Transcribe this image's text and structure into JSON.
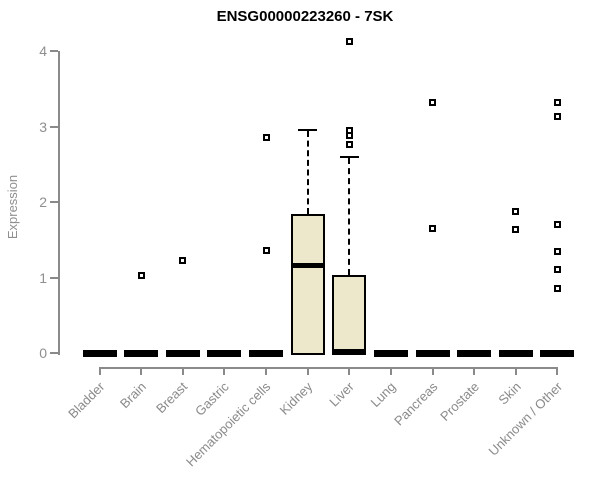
{
  "title": "ENSG00000223260 - 7SK",
  "chart_data": {
    "type": "box",
    "title": "ENSG00000223260 - 7SK",
    "xlabel": "",
    "ylabel": "Expression",
    "ylim": [
      0,
      4
    ],
    "yticks": [
      "0",
      "1",
      "2",
      "3",
      "4"
    ],
    "grid": false,
    "legend": "none",
    "categories": [
      "Bladder",
      "Brain",
      "Breast",
      "Gastric",
      "Hematopoietic cells",
      "Kidney",
      "Liver",
      "Lung",
      "Pancreas",
      "Prostate",
      "Skin",
      "Unknown / Other"
    ],
    "boxes": [
      {
        "category": "Bladder",
        "q1": 0,
        "median": 0,
        "q3": 0,
        "whisker_low": 0,
        "whisker_high": 0,
        "outliers": []
      },
      {
        "category": "Brain",
        "q1": 0,
        "median": 0,
        "q3": 0,
        "whisker_low": 0,
        "whisker_high": 0,
        "outliers": [
          1.02
        ]
      },
      {
        "category": "Breast",
        "q1": 0,
        "median": 0,
        "q3": 0,
        "whisker_low": 0,
        "whisker_high": 0,
        "outliers": [
          1.23
        ]
      },
      {
        "category": "Gastric",
        "q1": 0,
        "median": 0,
        "q3": 0,
        "whisker_low": 0,
        "whisker_high": 0,
        "outliers": []
      },
      {
        "category": "Hematopoietic cells",
        "q1": 0,
        "median": 0,
        "q3": 0,
        "whisker_low": 0,
        "whisker_high": 0,
        "outliers": [
          2.86,
          1.36
        ]
      },
      {
        "category": "Kidney",
        "q1": 0,
        "median": 1.17,
        "q3": 1.84,
        "whisker_low": 0,
        "whisker_high": 2.95,
        "outliers": []
      },
      {
        "category": "Liver",
        "q1": 0,
        "median": 0,
        "q3": 1.03,
        "whisker_low": 0,
        "whisker_high": 2.6,
        "outliers": [
          4.12,
          2.95,
          2.88,
          2.76
        ]
      },
      {
        "category": "Lung",
        "q1": 0,
        "median": 0,
        "q3": 0,
        "whisker_low": 0,
        "whisker_high": 0,
        "outliers": []
      },
      {
        "category": "Pancreas",
        "q1": 0,
        "median": 0,
        "q3": 0,
        "whisker_low": 0,
        "whisker_high": 0,
        "outliers": [
          3.32,
          1.65
        ]
      },
      {
        "category": "Prostate",
        "q1": 0,
        "median": 0,
        "q3": 0,
        "whisker_low": 0,
        "whisker_high": 0,
        "outliers": []
      },
      {
        "category": "Skin",
        "q1": 0,
        "median": 0,
        "q3": 0,
        "whisker_low": 0,
        "whisker_high": 0,
        "outliers": [
          1.87,
          1.63
        ]
      },
      {
        "category": "Unknown / Other",
        "q1": 0,
        "median": 0,
        "q3": 0,
        "whisker_low": 0,
        "whisker_high": 0,
        "outliers": [
          3.32,
          3.13,
          1.7,
          1.35,
          1.1,
          0.85
        ]
      }
    ],
    "colors": {
      "box_fill": "#EDE8CC",
      "box_border": "#000000",
      "median": "#000000",
      "outlier": "#000000",
      "axis": "#8a8a8a",
      "tick_text": "#8f8f8f",
      "title_text": "#000000"
    }
  }
}
